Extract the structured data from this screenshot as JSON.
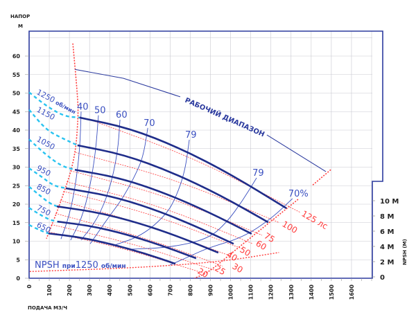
{
  "chart_data": {
    "type": "line",
    "title": "",
    "xlabel": "ПОДАЧА М3/Ч",
    "ylabel": "НАПОР",
    "yunit": "М",
    "xlim": [
      0,
      1700
    ],
    "ylim": [
      0,
      65
    ],
    "grid": true,
    "xticks": [
      "0",
      "100",
      "200",
      "300",
      "400",
      "500",
      "600",
      "700",
      "800",
      "900",
      "1000",
      "1100",
      "1200",
      "1300",
      "1400",
      "1500",
      "1600"
    ],
    "yticks": [
      "0",
      "5",
      "10",
      "15",
      "20",
      "25",
      "30",
      "35",
      "40",
      "45",
      "50",
      "55",
      "60"
    ],
    "y2label": "NPSH (M)",
    "y2ticks": [
      {
        "value": 0,
        "label": "0"
      },
      {
        "value": 2,
        "label": "2 M"
      },
      {
        "value": 4,
        "label": "4 M"
      },
      {
        "value": 6,
        "label": "6 M"
      },
      {
        "value": 8,
        "label": "8 M"
      },
      {
        "value": 10,
        "label": "10 M"
      }
    ],
    "colors": {
      "frame": "#2b3a9e",
      "speed": "#1f2d8a",
      "efficiency": "#3a4fc0",
      "power": "#ff3a3a",
      "extension": "#29c3f0",
      "grid": "#c8c8d0"
    },
    "speed_curves": [
      {
        "label": "1250",
        "unit": "об/мин",
        "points": [
          [
            250,
            43.4
          ],
          [
            500,
            40.5
          ],
          [
            750,
            35.1
          ],
          [
            1000,
            28.1
          ],
          [
            1277,
            18.9
          ]
        ],
        "extension": [
          [
            0,
            50.2
          ],
          [
            86,
            46.5
          ],
          [
            175,
            43.7
          ],
          [
            250,
            43.4
          ]
        ]
      },
      {
        "label": "1150",
        "unit": "",
        "points": [
          [
            240,
            35.9
          ],
          [
            470,
            33.4
          ],
          [
            710,
            28.6
          ],
          [
            950,
            22.4
          ],
          [
            1187,
            15.1
          ]
        ],
        "extension": [
          [
            0,
            45.5
          ],
          [
            86,
            40
          ],
          [
            165,
            37.8
          ],
          [
            240,
            35.9
          ]
        ]
      },
      {
        "label": "1050",
        "unit": "",
        "points": [
          [
            227,
            29.3
          ],
          [
            450,
            27.1
          ],
          [
            670,
            23.1
          ],
          [
            890,
            17.9
          ],
          [
            1104,
            12.0
          ]
        ],
        "extension": [
          [
            0,
            37.5
          ],
          [
            80,
            33.5
          ],
          [
            160,
            30.3
          ],
          [
            227,
            29.3
          ]
        ]
      },
      {
        "label": "950",
        "unit": "",
        "points": [
          [
            182,
            24.3
          ],
          [
            400,
            22.3
          ],
          [
            600,
            19.0
          ],
          [
            800,
            14.7
          ],
          [
            1015,
            9.3
          ]
        ],
        "extension": [
          [
            0,
            29.7
          ],
          [
            60,
            27.5
          ],
          [
            120,
            25.0
          ],
          [
            182,
            24.3
          ]
        ]
      },
      {
        "label": "850",
        "unit": "",
        "points": [
          [
            138,
            19.4
          ],
          [
            340,
            17.8
          ],
          [
            540,
            15.0
          ],
          [
            740,
            11.3
          ],
          [
            939,
            6.9
          ]
        ],
        "extension": [
          [
            0,
            24.7
          ],
          [
            50,
            22.5
          ],
          [
            100,
            20.3
          ],
          [
            138,
            19.4
          ]
        ]
      },
      {
        "label": "750",
        "unit": "",
        "points": [
          [
            141,
            15.3
          ],
          [
            310,
            14.1
          ],
          [
            480,
            11.9
          ],
          [
            650,
            9.0
          ],
          [
            829,
            5.4
          ]
        ],
        "extension": [
          [
            0,
            19.0
          ],
          [
            50,
            17.3
          ],
          [
            100,
            15.8
          ],
          [
            141,
            15.3
          ]
        ]
      },
      {
        "label": "650",
        "unit": "",
        "points": [
          [
            96,
            12.1
          ],
          [
            250,
            11.1
          ],
          [
            410,
            9.2
          ],
          [
            570,
            6.8
          ],
          [
            726,
            3.9
          ]
        ],
        "extension": [
          [
            0,
            14.4
          ],
          [
            40,
            13.3
          ],
          [
            75,
            12.5
          ],
          [
            96,
            12.1
          ]
        ]
      }
    ],
    "efficiency_curves": [
      {
        "label": "40",
        "points": [
          [
            258,
            45
          ],
          [
            252,
            35
          ],
          [
            230,
            25
          ],
          [
            200,
            17
          ],
          [
            158,
            10.6
          ]
        ]
      },
      {
        "label": "50",
        "points": [
          [
            344,
            44
          ],
          [
            330,
            34
          ],
          [
            300,
            24
          ],
          [
            260,
            16
          ],
          [
            206,
            10.3
          ]
        ]
      },
      {
        "label": "60",
        "points": [
          [
            451,
            42.8
          ],
          [
            440,
            34
          ],
          [
            400,
            24
          ],
          [
            340,
            16
          ],
          [
            258,
            10.3
          ]
        ]
      },
      {
        "label": "70",
        "points": [
          [
            589,
            40.6
          ],
          [
            570,
            34
          ],
          [
            544,
            29.7
          ],
          [
            470,
            22
          ],
          [
            396,
            16.6
          ],
          [
            303,
            9.3
          ]
        ]
      },
      {
        "label": "79",
        "points": [
          [
            795,
            37.4
          ],
          [
            774,
            29
          ],
          [
            730,
            22
          ],
          [
            681,
            17.2
          ],
          [
            560,
            11.5
          ],
          [
            416,
            8.8
          ]
        ]
      },
      {
        "label": "79",
        "points": [
          [
            1129,
            27.1
          ],
          [
            1060,
            21
          ],
          [
            980,
            15
          ],
          [
            888,
            10.6
          ],
          [
            700,
            8.3
          ],
          [
            485,
            7.8
          ]
        ]
      },
      {
        "label": "70%",
        "points": [
          [
            1307,
            21.5
          ],
          [
            1200,
            16
          ],
          [
            1060,
            11
          ],
          [
            888,
            8.2
          ],
          [
            800,
            6
          ],
          [
            700,
            3.6
          ]
        ]
      }
    ],
    "power_curves": [
      {
        "label": "20",
        "unit": "",
        "points": [
          [
            98,
            12.5
          ],
          [
            480,
            8.0
          ],
          [
            870,
            1.3
          ]
        ]
      },
      {
        "label": "25",
        "unit": "",
        "points": [
          [
            111,
            14.5
          ],
          [
            520,
            9.3
          ],
          [
            920,
            2.2
          ]
        ]
      },
      {
        "label": "30",
        "unit": "",
        "points": [
          [
            131,
            17.5
          ],
          [
            560,
            11.2
          ],
          [
            960,
            3.3
          ]
        ]
      },
      {
        "label": "40",
        "unit": "",
        "points": [
          [
            154,
            21.0
          ],
          [
            580,
            14.5
          ],
          [
            1000,
            6.0
          ]
        ]
      },
      {
        "label": "50",
        "unit": "",
        "points": [
          [
            170,
            23.5
          ],
          [
            620,
            17.2
          ],
          [
            1060,
            7.9
          ]
        ]
      },
      {
        "label": "60",
        "unit": "",
        "points": [
          [
            187,
            26.0
          ],
          [
            650,
            19.6
          ],
          [
            1111,
            9.3
          ]
        ]
      },
      {
        "label": "75",
        "unit": "",
        "points": [
          [
            207,
            29.0
          ],
          [
            690,
            22.2
          ],
          [
            1156,
            11.6
          ]
        ]
      },
      {
        "label": "100",
        "unit": "",
        "points": [
          [
            230,
            34.0
          ],
          [
            740,
            26.5
          ],
          [
            1242,
            15.0
          ]
        ]
      },
      {
        "label": "125",
        "unit": "лс",
        "points": [
          [
            303,
            42.8
          ],
          [
            820,
            32.5
          ],
          [
            1345,
            17.8
          ]
        ]
      }
    ],
    "operating_range": {
      "label": "РАБОЧИЙ ДИАПАЗОН",
      "points": [
        [
          227,
          56.4
        ],
        [
          468,
          54
        ],
        [
          750,
          49
        ],
        [
          1180,
          38.7
        ],
        [
          1473,
          28.8
        ]
      ]
    },
    "min_flow_limit": [
      [
        217,
        63.4
      ],
      [
        241,
        49
      ],
      [
        244,
        43.4
      ],
      [
        227,
        32.1
      ],
      [
        160,
        21
      ],
      [
        86,
        10.7
      ]
    ],
    "max_flow_limit": [
      [
        1335,
        21.3
      ],
      [
        1180,
        14.5
      ],
      [
        1010,
        7.0
      ],
      [
        888,
        1.5
      ],
      [
        820,
        0
      ]
    ],
    "upper_limit": [
      [
        1497,
        29.3
      ],
      [
        1404,
        25
      ]
    ],
    "npsh_curve": {
      "label_parts": [
        "NPSH ",
        "при",
        "1250 ",
        "об/мин"
      ],
      "points": [
        [
          3,
          0.7
        ],
        [
          544,
          1.2
        ],
        [
          956,
          2.0
        ],
        [
          1240,
          3.2
        ]
      ]
    }
  }
}
